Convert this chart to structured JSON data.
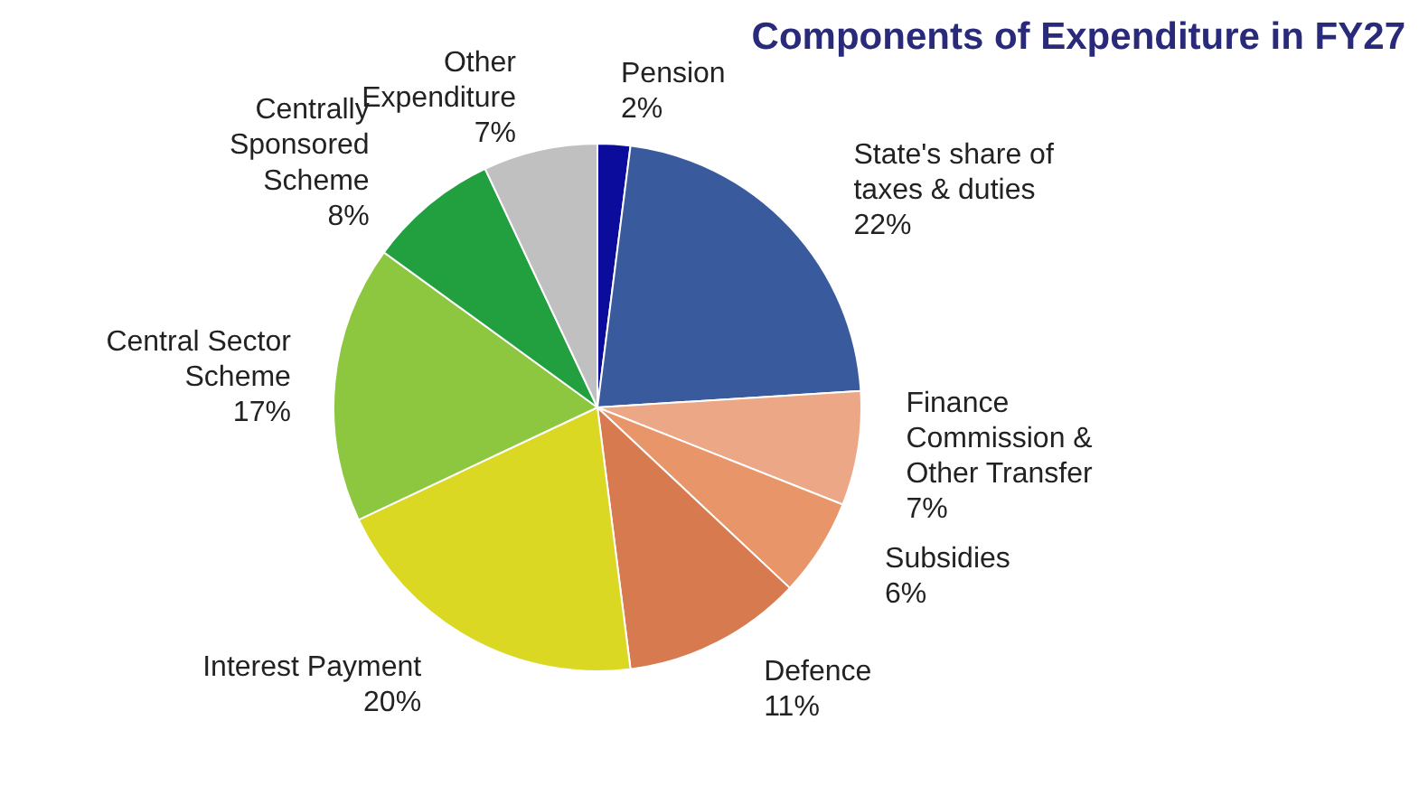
{
  "chart_data": {
    "type": "pie",
    "title": "Components of Expenditure in FY27",
    "categories": [
      "Pension",
      "State's share of\ntaxes & duties",
      "Finance\nCommission &\nOther Transfer",
      "Subsidies",
      "Defence",
      "Interest Payment",
      "Central Sector\nScheme",
      "Centrally\nSponsored\nScheme",
      "Other\nExpenditure"
    ],
    "values": [
      2,
      22,
      7,
      6,
      11,
      20,
      17,
      8,
      7
    ],
    "value_labels": [
      "2%",
      "22%",
      "7%",
      "6%",
      "11%",
      "20%",
      "17%",
      "8%",
      "7%"
    ],
    "colors": [
      "#0b0b9c",
      "#3a5a9e",
      "#eca886",
      "#e8956a",
      "#d87a50",
      "#dbd824",
      "#8dc63f",
      "#22a040",
      "#c0c0c0"
    ]
  }
}
